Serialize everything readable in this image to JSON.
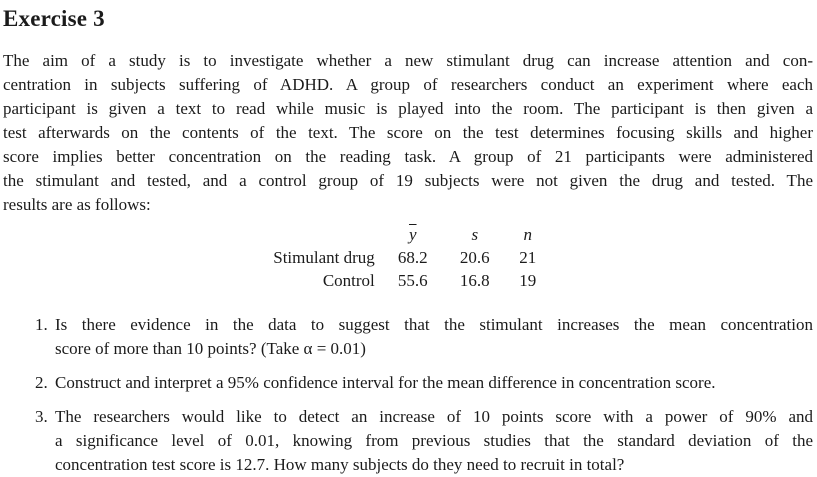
{
  "page": {
    "background": "#ffffff",
    "text_color": "#1b1b1b"
  },
  "header": {
    "title": "Exercise 3"
  },
  "intro": {
    "lines": [
      "The aim of a study is to investigate whether a new stimulant drug can increase attention and con-",
      "centration in subjects suffering of ADHD. A group of researchers conduct an experiment where each",
      "participant is given a text to read while music is played into the room. The participant is then given a",
      "test afterwards on the contents of the text. The score on the test determines focusing skills and higher",
      "score implies better concentration on the reading task. A group of 21 participants were administered",
      "the stimulant and tested, and a control group of 19 subjects were not given the drug and tested. The",
      "results are as follows:"
    ]
  },
  "results_table": {
    "headers": {
      "mean_symbol": "y",
      "sd_symbol": "s",
      "n_symbol": "n"
    },
    "rows": [
      {
        "label": "Stimulant drug",
        "mean": "68.2",
        "sd": "20.6",
        "n": "21"
      },
      {
        "label": "Control",
        "mean": "55.6",
        "sd": "16.8",
        "n": "19"
      }
    ]
  },
  "questions": [
    {
      "number": "1.",
      "lines": [
        "Is there evidence in the data to suggest that the stimulant increases the mean concentration",
        "score of more than 10 points? (Take α = 0.01)"
      ]
    },
    {
      "number": "2.",
      "lines": [
        "Construct and interpret a 95% confidence interval for the mean difference in concentration score."
      ]
    },
    {
      "number": "3.",
      "lines": [
        "The researchers would like to detect an increase of 10 points score with a power of 90% and",
        "a significance level of 0.01, knowing from previous studies that the standard deviation of the",
        "concentration test score is 12.7. How many subjects do they need to recruit in total?"
      ]
    }
  ]
}
